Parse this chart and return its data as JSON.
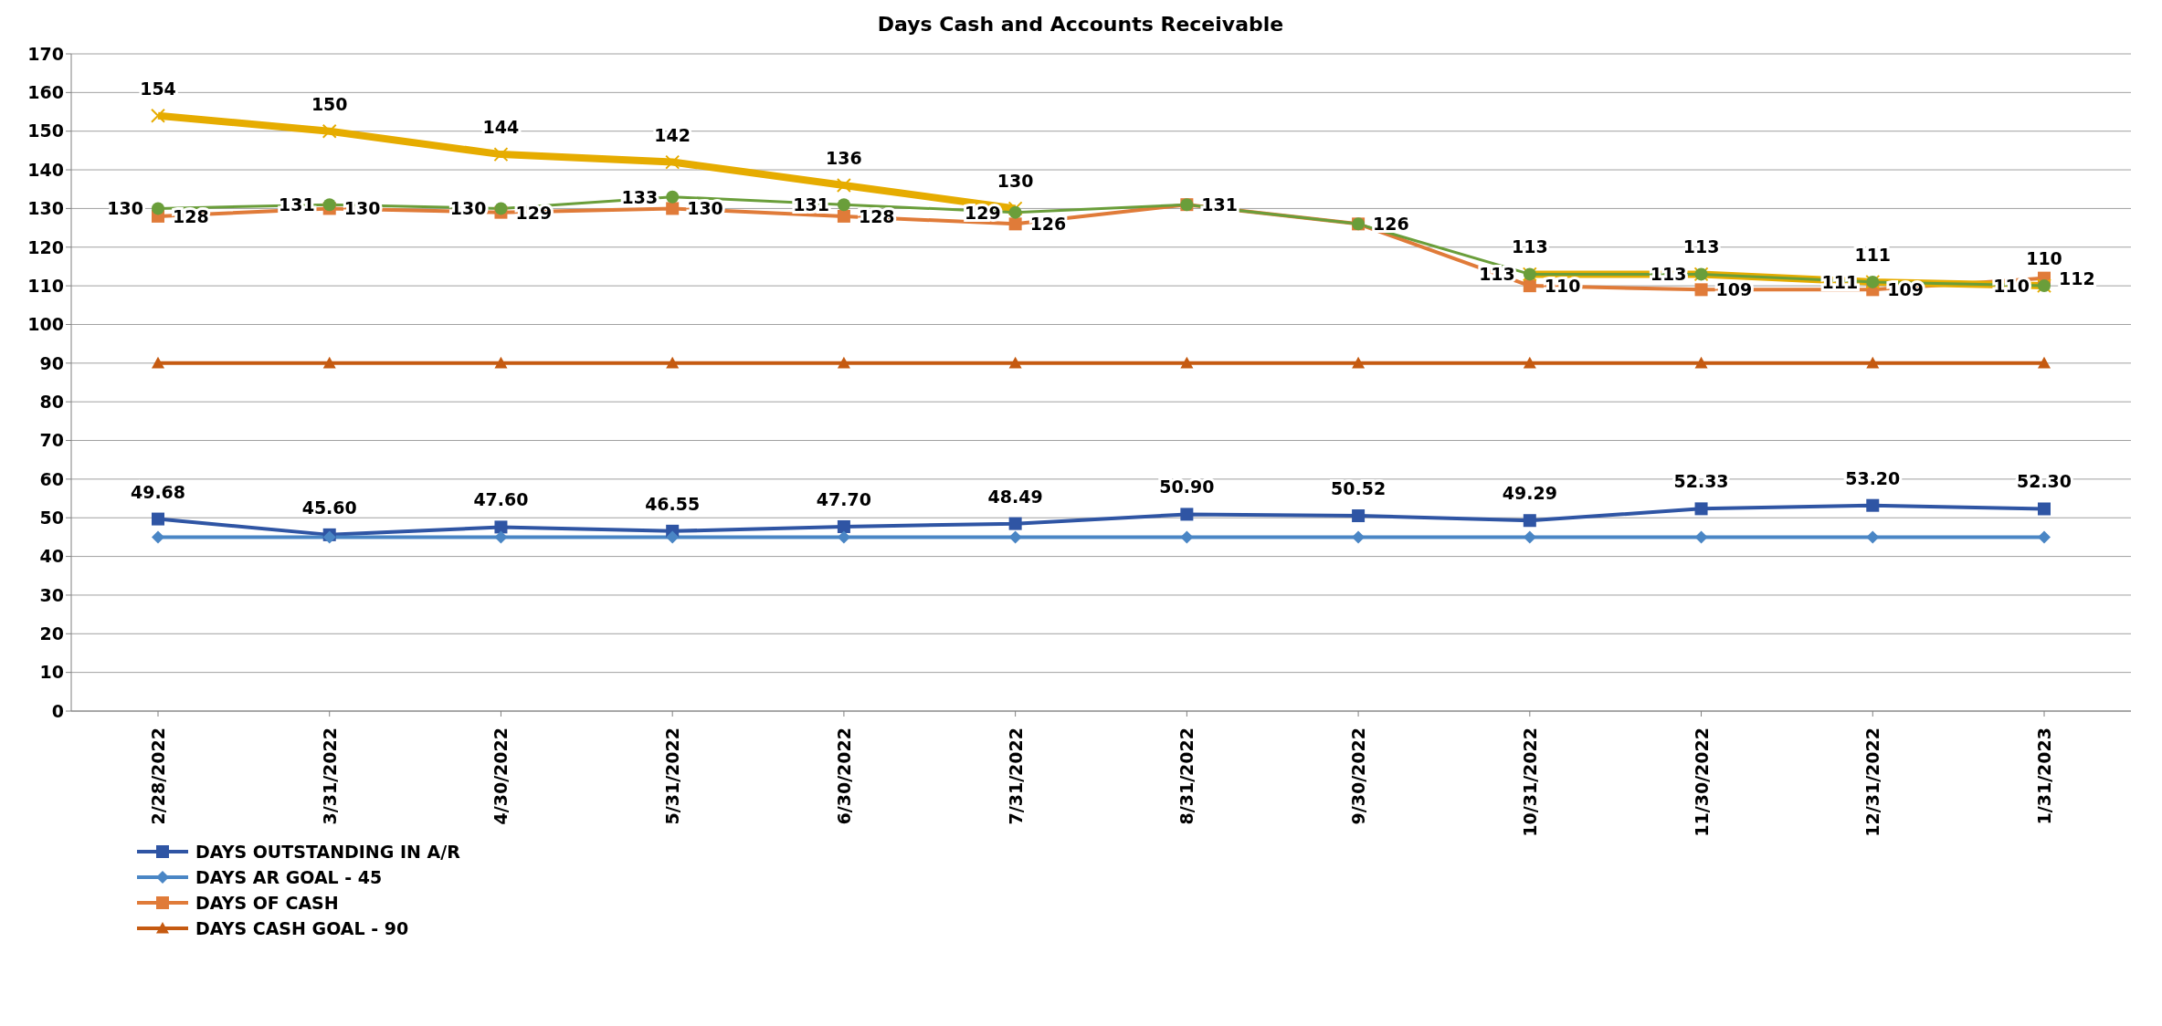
{
  "chart_data": {
    "type": "line",
    "title": "Days Cash and Accounts Receivable",
    "categories": [
      "2/28/2022",
      "3/31/2022",
      "4/30/2022",
      "5/31/2022",
      "6/30/2022",
      "7/31/2022",
      "8/31/2022",
      "9/30/2022",
      "10/31/2022",
      "11/30/2022",
      "12/31/2022",
      "1/31/2023"
    ],
    "series": [
      {
        "name": "DAYS OUTSTANDING IN A/R",
        "color": "#2f55a4",
        "marker": "square",
        "values": [
          49.68,
          45.6,
          47.6,
          46.55,
          47.7,
          48.49,
          50.9,
          50.52,
          49.29,
          52.33,
          53.2,
          52.3
        ],
        "value_labels": [
          "49.68",
          "45.60",
          "47.60",
          "46.55",
          "47.70",
          "48.49",
          "50.90",
          "50.52",
          "49.29",
          "52.33",
          "53.20",
          "52.30"
        ]
      },
      {
        "name": "DAYS AR GOAL - 45",
        "color": "#4a86c5",
        "marker": "diamond",
        "values": [
          45,
          45,
          45,
          45,
          45,
          45,
          45,
          45,
          45,
          45,
          45,
          45
        ]
      },
      {
        "name": "DAYS OF CASH",
        "color": "#e07b39",
        "marker": "square",
        "values": [
          128,
          130,
          129,
          130,
          128,
          126,
          131,
          126,
          110,
          109,
          109,
          112
        ],
        "value_labels": [
          "128",
          "130",
          "129",
          "130",
          "128",
          "126",
          "131",
          "126",
          "110",
          "109",
          "109",
          "112"
        ]
      },
      {
        "name": "DAYS CASH GOAL - 90",
        "color": "#c55a11",
        "marker": "triangle",
        "values": [
          90,
          90,
          90,
          90,
          90,
          90,
          90,
          90,
          90,
          90,
          90,
          90
        ]
      },
      {
        "color": "#e6ac00",
        "marker": "cross",
        "values": [
          154,
          150,
          144,
          142,
          136,
          130,
          null,
          null,
          113,
          113,
          111,
          110
        ],
        "value_labels": [
          "154",
          "150",
          "144",
          "142",
          "136",
          "130",
          null,
          null,
          "113",
          "113",
          "111",
          "110"
        ]
      },
      {
        "color": "#6a9e3a",
        "marker": "circle",
        "values": [
          130,
          131,
          130,
          133,
          131,
          129,
          131,
          126,
          113,
          113,
          111,
          110
        ],
        "value_labels": [
          "130",
          "131",
          "130",
          "133",
          "131",
          "129",
          null,
          null,
          "113",
          "113",
          "111",
          "110"
        ]
      }
    ],
    "ylim": [
      0,
      170
    ],
    "yticks": [
      0,
      10,
      20,
      30,
      40,
      50,
      60,
      70,
      80,
      90,
      100,
      110,
      120,
      130,
      140,
      150,
      160,
      170
    ],
    "grid": "y",
    "legend": "bottom left"
  }
}
